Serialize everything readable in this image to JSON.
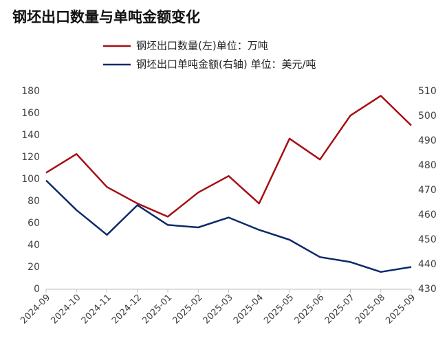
{
  "chart_data": {
    "type": "line",
    "title": "钢坯出口数量与单吨金额变化",
    "categories": [
      "2024-09",
      "2024-10",
      "2024-11",
      "2024-12",
      "2025-01",
      "2025-02",
      "2025-03",
      "2025-04",
      "2025-05",
      "2025-06",
      "2025-07",
      "2025-08",
      "2025-09"
    ],
    "series": [
      {
        "name": "钢坯出口数量(左)单位：万吨",
        "color": "#a50f15",
        "values": [
          106,
          123,
          93,
          78,
          66,
          88,
          103,
          78,
          137,
          118,
          158,
          176,
          149
        ]
      },
      {
        "name": "钢坯出口单吨金额(右轴) 单位：美元/吨",
        "color": "#0b2a6b",
        "axis": "y2",
        "values": [
          474,
          462,
          452,
          464,
          456,
          455,
          459,
          454,
          450,
          443,
          441,
          437,
          439
        ]
      }
    ],
    "ylim": [
      0,
      180
    ],
    "yticks": [
      0,
      20,
      40,
      60,
      80,
      100,
      120,
      140,
      160,
      180
    ],
    "y2lim": [
      430,
      510
    ],
    "y2ticks": [
      430,
      440,
      450,
      460,
      470,
      480,
      490,
      500,
      510
    ],
    "grid": false
  }
}
